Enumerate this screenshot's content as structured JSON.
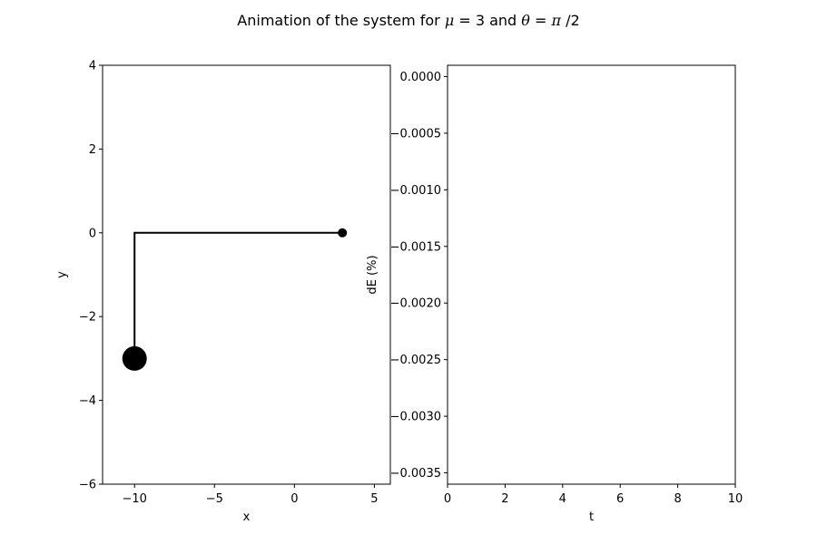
{
  "figure": {
    "title_prefix": "Animation of the system for ",
    "title_mu_symbol": "μ",
    "title_mu_eq": " = 3 and ",
    "title_theta_symbol": "θ",
    "title_theta_eq": " = ",
    "title_pi_symbol": "π",
    "title_pi_tail": "/2"
  },
  "chart_data": [
    {
      "type": "line",
      "xlabel": "x",
      "ylabel": "y",
      "xlim": [
        -12,
        6
      ],
      "ylim": [
        -6,
        4
      ],
      "xticks": [
        -10,
        -5,
        0,
        5
      ],
      "xtick_labels": [
        "−10",
        "−5",
        "0",
        "5"
      ],
      "yticks": [
        4,
        2,
        0,
        -2,
        -4,
        -6
      ],
      "ytick_labels": [
        "4",
        "2",
        "0",
        "−2",
        "−4",
        "−6"
      ],
      "grid": false,
      "series": [
        {
          "x": [
            3,
            -10,
            -10
          ],
          "y": [
            0,
            0,
            -3
          ],
          "color": "#000000"
        }
      ],
      "markers": [
        {
          "kind": "small-mass",
          "x": 3,
          "y": 0,
          "color": "#000000"
        },
        {
          "kind": "large-mass",
          "x": -10,
          "y": -3,
          "color": "#000000"
        }
      ]
    },
    {
      "type": "line",
      "xlabel": "t",
      "ylabel": "dE (%)",
      "xlim": [
        0,
        10
      ],
      "ylim": [
        -0.0036,
        0.0001
      ],
      "xticks": [
        0,
        2,
        4,
        6,
        8,
        10
      ],
      "xtick_labels": [
        "0",
        "2",
        "4",
        "6",
        "8",
        "10"
      ],
      "yticks": [
        0.0,
        -0.0005,
        -0.001,
        -0.0015,
        -0.002,
        -0.0025,
        -0.003,
        -0.0035
      ],
      "ytick_labels": [
        "0.0000",
        "−0.0005",
        "−0.0010",
        "−0.0015",
        "−0.0020",
        "−0.0025",
        "−0.0030",
        "−0.0035"
      ],
      "grid": false,
      "series": []
    }
  ]
}
